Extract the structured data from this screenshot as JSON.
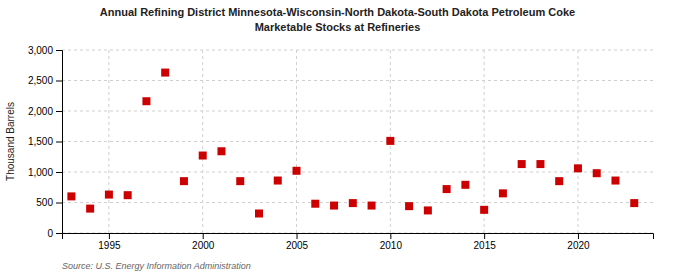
{
  "chart_data": {
    "type": "scatter",
    "title": "Annual Refining District Minnesota-Wisconsin-North Dakota-South Dakota Petroleum Coke",
    "subtitle": "Marketable Stocks at Refineries",
    "y_label": "Thousand Barrels",
    "annotations": [
      "Source: U.S. Energy Information Administration"
    ],
    "x": [
      1993,
      1994,
      1995,
      1996,
      1997,
      1998,
      1999,
      2000,
      2001,
      2002,
      2003,
      2004,
      2005,
      2006,
      2007,
      2008,
      2009,
      2010,
      2011,
      2012,
      2013,
      2014,
      2015,
      2016,
      2017,
      2018,
      2019,
      2020,
      2021,
      2022,
      2023
    ],
    "values": [
      600,
      400,
      630,
      620,
      2160,
      2630,
      850,
      1270,
      1340,
      850,
      320,
      860,
      1020,
      480,
      450,
      490,
      450,
      1510,
      440,
      370,
      720,
      790,
      380,
      650,
      1130,
      1130,
      850,
      1060,
      980,
      860,
      490
    ],
    "color": "#cc0000",
    "marker": "square",
    "grid": true,
    "xlim": [
      1992.5,
      2024
    ],
    "xticks": [
      1995,
      2000,
      2005,
      2010,
      2015,
      2020
    ],
    "ylim": [
      0,
      3000
    ],
    "yticks": [
      0,
      500,
      {
        "value": 1000,
        "label": "1,000"
      },
      {
        "value": 1500,
        "label": "1,500"
      },
      {
        "value": 2000,
        "label": "2,000"
      },
      {
        "value": 2500,
        "label": "2,500"
      },
      {
        "value": 3000,
        "label": "3,000"
      }
    ]
  }
}
